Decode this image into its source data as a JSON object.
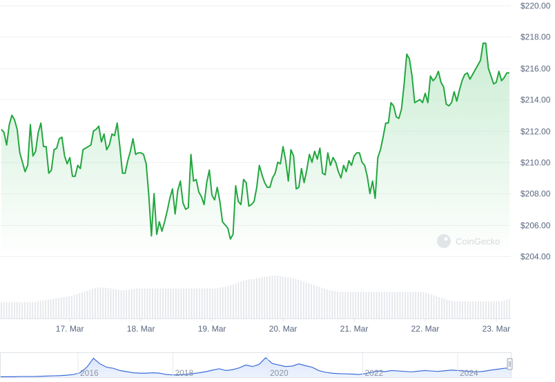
{
  "chart_data": {
    "type": "area",
    "series": [
      {
        "values": [
          212.1,
          211.9,
          211.1,
          212.4,
          213.0,
          212.7,
          212.1,
          210.6,
          210.0,
          209.4,
          209.8,
          212.4,
          210.4,
          210.7,
          211.9,
          212.5,
          211.0,
          211.0,
          209.3,
          209.5,
          210.8,
          210.9,
          211.5,
          211.6,
          210.4,
          209.9,
          210.3,
          209.1,
          209.1,
          209.8,
          209.6,
          210.8,
          210.9,
          211.0,
          211.1,
          212.0,
          212.1,
          212.3,
          211.3,
          211.8,
          210.8,
          211.1,
          211.8,
          211.7,
          212.5,
          211.0,
          209.3,
          209.3,
          210.1,
          210.7,
          211.5,
          210.5,
          210.6,
          210.6,
          210.5,
          209.9,
          207.9,
          205.3,
          208.0,
          205.4,
          206.2,
          205.6,
          206.2,
          206.9,
          207.7,
          208.3,
          206.7,
          208.2,
          208.8,
          207.4,
          207.0,
          207.1,
          210.5,
          208.8,
          208.9,
          208.1,
          207.8,
          207.3,
          208.7,
          209.5,
          207.9,
          207.6,
          208.4,
          207.5,
          206.2,
          206.0,
          205.8,
          205.1,
          205.4,
          208.5,
          207.5,
          207.3,
          208.9,
          208.7,
          207.2,
          207.3,
          207.5,
          208.4,
          209.8,
          209.2,
          208.7,
          208.4,
          208.4,
          209.0,
          209.3,
          210.0,
          209.9,
          211.0,
          210.1,
          208.8,
          210.8,
          210.4,
          208.3,
          208.4,
          209.6,
          208.7,
          209.5,
          210.5,
          210.0,
          210.7,
          210.2,
          210.9,
          209.3,
          209.2,
          210.6,
          209.8,
          210.3,
          210.0,
          209.4,
          209.0,
          209.8,
          209.4,
          210.1,
          209.8,
          210.4,
          210.6,
          210.6,
          210.0,
          209.8,
          209.1,
          208.0,
          208.8,
          207.7,
          210.3,
          210.8,
          211.6,
          212.5,
          212.5,
          213.8,
          213.6,
          212.9,
          212.8,
          213.4,
          215.0,
          216.9,
          216.6,
          215.5,
          213.8,
          213.9,
          214.0,
          213.8,
          214.4,
          213.8,
          215.5,
          215.2,
          215.4,
          215.8,
          215.1,
          214.8,
          213.7,
          213.6,
          213.8,
          214.5,
          213.9,
          214.6,
          215.2,
          215.6,
          215.7,
          215.3,
          215.6,
          215.9,
          216.2,
          216.5,
          217.6,
          217.6,
          216.0,
          215.5,
          215.0,
          215.1,
          215.8,
          215.2,
          215.4,
          215.7,
          215.7
        ]
      }
    ],
    "ylim": [
      204,
      220
    ],
    "yticks": [
      "$204.00",
      "$206.00",
      "$208.00",
      "$210.00",
      "$212.00",
      "$214.00",
      "$216.00",
      "$218.00",
      "$220.00"
    ],
    "ytick_values": [
      204,
      206,
      208,
      210,
      212,
      214,
      216,
      218,
      220
    ],
    "xticks": [
      "17. Mar",
      "18. Mar",
      "19. Mar",
      "20. Mar",
      "21. Mar",
      "22. Mar",
      "23. Mar"
    ],
    "xtick_index": [
      26,
      53,
      80,
      107,
      134,
      161,
      188
    ],
    "volume": [
      0.38,
      0.38,
      0.38,
      0.38,
      0.38,
      0.38,
      0.38,
      0.38,
      0.38,
      0.38,
      0.38,
      0.38,
      0.38,
      0.39,
      0.4,
      0.41,
      0.42,
      0.43,
      0.44,
      0.45,
      0.46,
      0.47,
      0.48,
      0.49,
      0.5,
      0.51,
      0.52,
      0.53,
      0.55,
      0.57,
      0.59,
      0.61,
      0.63,
      0.65,
      0.67,
      0.69,
      0.71,
      0.72,
      0.72,
      0.72,
      0.72,
      0.71,
      0.7,
      0.69,
      0.68,
      0.67,
      0.66,
      0.66,
      0.66,
      0.67,
      0.68,
      0.69,
      0.7,
      0.7,
      0.7,
      0.7,
      0.7,
      0.7,
      0.7,
      0.7,
      0.7,
      0.7,
      0.7,
      0.7,
      0.7,
      0.7,
      0.7,
      0.7,
      0.7,
      0.7,
      0.7,
      0.7,
      0.7,
      0.7,
      0.7,
      0.7,
      0.7,
      0.7,
      0.7,
      0.7,
      0.7,
      0.7,
      0.7,
      0.71,
      0.72,
      0.73,
      0.74,
      0.76,
      0.78,
      0.8,
      0.82,
      0.84,
      0.86,
      0.88,
      0.9,
      0.91,
      0.92,
      0.93,
      0.94,
      0.95,
      0.96,
      0.97,
      0.98,
      0.99,
      1.0,
      1.0,
      1.0,
      0.99,
      0.98,
      0.97,
      0.96,
      0.95,
      0.94,
      0.92,
      0.9,
      0.88,
      0.86,
      0.84,
      0.82,
      0.8,
      0.78,
      0.76,
      0.74,
      0.72,
      0.7,
      0.68,
      0.66,
      0.65,
      0.64,
      0.63,
      0.62,
      0.62,
      0.62,
      0.62,
      0.62,
      0.62,
      0.62,
      0.62,
      0.62,
      0.62,
      0.62,
      0.62,
      0.62,
      0.62,
      0.62,
      0.62,
      0.62,
      0.62,
      0.62,
      0.62,
      0.62,
      0.62,
      0.62,
      0.62,
      0.62,
      0.62,
      0.62,
      0.62,
      0.62,
      0.62,
      0.62,
      0.62,
      0.62,
      0.6,
      0.58,
      0.56,
      0.54,
      0.52,
      0.5,
      0.48,
      0.46,
      0.44,
      0.42,
      0.4,
      0.4,
      0.4,
      0.4,
      0.4,
      0.4,
      0.4,
      0.4,
      0.4,
      0.4,
      0.4,
      0.4,
      0.4,
      0.4,
      0.4,
      0.4,
      0.4,
      0.4,
      0.4,
      0.4,
      0.42,
      0.44,
      0.46
    ],
    "navigator_years": [
      "2016",
      "2018",
      "2020",
      "2022",
      "2024"
    ],
    "navigator_series": [
      0.02,
      0.02,
      0.02,
      0.03,
      0.03,
      0.03,
      0.04,
      0.05,
      0.06,
      0.07,
      0.09,
      0.12,
      0.2,
      0.45,
      0.85,
      0.6,
      0.45,
      0.4,
      0.3,
      0.25,
      0.2,
      0.18,
      0.18,
      0.2,
      0.18,
      0.12,
      0.1,
      0.11,
      0.13,
      0.16,
      0.2,
      0.25,
      0.32,
      0.38,
      0.3,
      0.34,
      0.42,
      0.55,
      0.48,
      0.58,
      0.88,
      0.62,
      0.55,
      0.48,
      0.5,
      0.6,
      0.52,
      0.45,
      0.3,
      0.22,
      0.18,
      0.16,
      0.15,
      0.14,
      0.12,
      0.16,
      0.22,
      0.28,
      0.25,
      0.3,
      0.28,
      0.26,
      0.24,
      0.27,
      0.3,
      0.28,
      0.26,
      0.29,
      0.32,
      0.3,
      0.28,
      0.25,
      0.24,
      0.27,
      0.32,
      0.36,
      0.4,
      0.42
    ],
    "colors": {
      "line": "#16c784",
      "line_dark": "#1aa23a",
      "area_top": "#cfeed6",
      "grid": "#eff2f5",
      "volume": "#e3e6ea",
      "navigator_line": "#3b6dd9",
      "navigator_fill": "#dbe6fb"
    },
    "watermark": "CoinGecko"
  }
}
